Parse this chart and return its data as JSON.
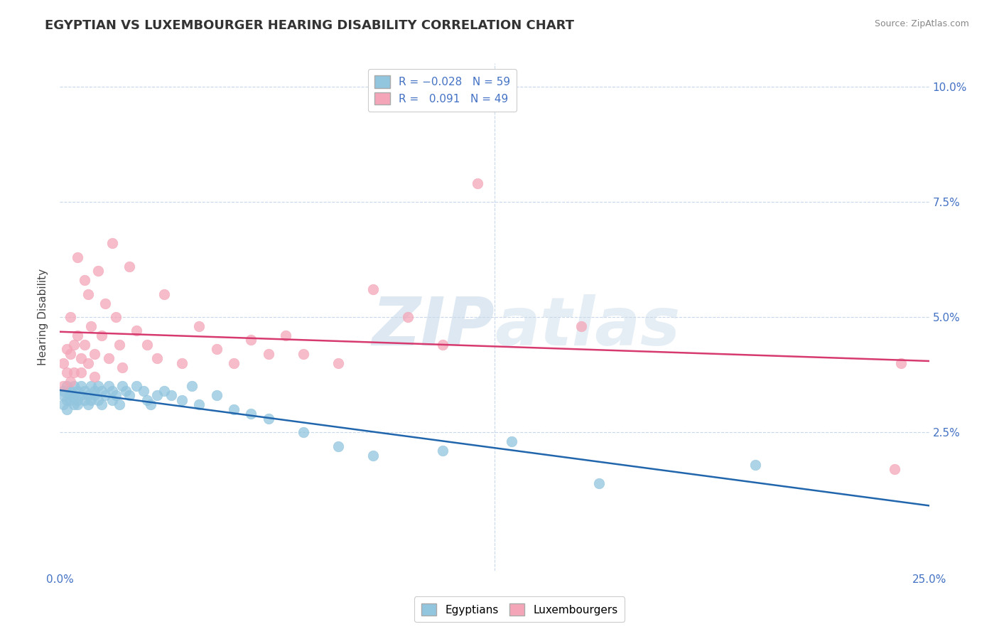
{
  "title": "EGYPTIAN VS LUXEMBOURGER HEARING DISABILITY CORRELATION CHART",
  "source": "Source: ZipAtlas.com",
  "ylabel": "Hearing Disability",
  "xlim": [
    0.0,
    0.25
  ],
  "ylim": [
    -0.005,
    0.105
  ],
  "blue_color": "#92c5de",
  "pink_color": "#f4a6b8",
  "line_blue": "#2166ac",
  "line_pink": "#d63a6e",
  "watermark_color": "#d8e8f0",
  "background_color": "#ffffff",
  "grid_color": "#c8d8ea",
  "tick_color": "#4472c4",
  "title_fontsize": 13,
  "axis_label_fontsize": 11,
  "tick_fontsize": 11,
  "source_fontsize": 9,
  "egyptian_x": [
    0.001,
    0.001,
    0.001,
    0.002,
    0.002,
    0.002,
    0.003,
    0.003,
    0.003,
    0.004,
    0.004,
    0.004,
    0.005,
    0.005,
    0.005,
    0.006,
    0.006,
    0.007,
    0.007,
    0.008,
    0.008,
    0.009,
    0.009,
    0.01,
    0.01,
    0.011,
    0.011,
    0.012,
    0.012,
    0.013,
    0.014,
    0.015,
    0.015,
    0.016,
    0.017,
    0.018,
    0.019,
    0.02,
    0.022,
    0.024,
    0.025,
    0.026,
    0.028,
    0.03,
    0.032,
    0.035,
    0.038,
    0.04,
    0.045,
    0.05,
    0.055,
    0.06,
    0.07,
    0.08,
    0.09,
    0.11,
    0.13,
    0.155,
    0.2
  ],
  "egyptian_y": [
    0.034,
    0.033,
    0.031,
    0.035,
    0.032,
    0.03,
    0.034,
    0.033,
    0.032,
    0.033,
    0.031,
    0.035,
    0.034,
    0.032,
    0.031,
    0.033,
    0.035,
    0.034,
    0.032,
    0.033,
    0.031,
    0.035,
    0.032,
    0.034,
    0.033,
    0.035,
    0.032,
    0.034,
    0.031,
    0.033,
    0.035,
    0.034,
    0.032,
    0.033,
    0.031,
    0.035,
    0.034,
    0.033,
    0.035,
    0.034,
    0.032,
    0.031,
    0.033,
    0.034,
    0.033,
    0.032,
    0.035,
    0.031,
    0.033,
    0.03,
    0.029,
    0.028,
    0.025,
    0.022,
    0.02,
    0.021,
    0.023,
    0.014,
    0.018
  ],
  "luxembourger_x": [
    0.001,
    0.001,
    0.002,
    0.002,
    0.003,
    0.003,
    0.003,
    0.004,
    0.004,
    0.005,
    0.005,
    0.006,
    0.006,
    0.007,
    0.007,
    0.008,
    0.008,
    0.009,
    0.01,
    0.01,
    0.011,
    0.012,
    0.013,
    0.014,
    0.015,
    0.016,
    0.017,
    0.018,
    0.02,
    0.022,
    0.025,
    0.028,
    0.03,
    0.035,
    0.04,
    0.045,
    0.05,
    0.055,
    0.06,
    0.065,
    0.07,
    0.08,
    0.09,
    0.1,
    0.11,
    0.12,
    0.15,
    0.24,
    0.242
  ],
  "luxembourger_y": [
    0.04,
    0.035,
    0.043,
    0.038,
    0.05,
    0.042,
    0.036,
    0.044,
    0.038,
    0.063,
    0.046,
    0.041,
    0.038,
    0.058,
    0.044,
    0.055,
    0.04,
    0.048,
    0.042,
    0.037,
    0.06,
    0.046,
    0.053,
    0.041,
    0.066,
    0.05,
    0.044,
    0.039,
    0.061,
    0.047,
    0.044,
    0.041,
    0.055,
    0.04,
    0.048,
    0.043,
    0.04,
    0.045,
    0.042,
    0.046,
    0.042,
    0.04,
    0.056,
    0.05,
    0.044,
    0.079,
    0.048,
    0.017,
    0.04
  ]
}
